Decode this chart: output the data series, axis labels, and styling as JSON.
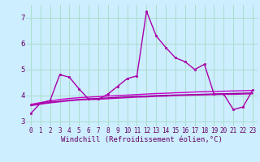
{
  "xlabel": "Windchill (Refroidissement éolien,°C)",
  "background_color": "#cceeff",
  "grid_color": "#aaddcc",
  "xlim": [
    -0.5,
    23.5
  ],
  "ylim": [
    2.8,
    7.5
  ],
  "yticks": [
    3,
    4,
    5,
    6,
    7
  ],
  "xticks": [
    0,
    1,
    2,
    3,
    4,
    5,
    6,
    7,
    8,
    9,
    10,
    11,
    12,
    13,
    14,
    15,
    16,
    17,
    18,
    19,
    20,
    21,
    22,
    23
  ],
  "series": [
    {
      "x": [
        0,
        1,
        2,
        3,
        4,
        5,
        6,
        7,
        8,
        9,
        10,
        11,
        12,
        13,
        14,
        15,
        16,
        17,
        18,
        19,
        20,
        21,
        22,
        23
      ],
      "y": [
        3.3,
        3.7,
        3.8,
        4.8,
        4.7,
        4.25,
        3.85,
        3.85,
        4.05,
        4.35,
        4.65,
        4.75,
        7.25,
        6.3,
        5.85,
        5.45,
        5.3,
        5.0,
        5.2,
        4.05,
        4.05,
        3.45,
        3.55,
        4.2
      ],
      "color": "#aa00aa",
      "lw": 1.0,
      "marker": "s",
      "ms": 2.0
    },
    {
      "x": [
        0,
        1,
        2,
        3,
        4,
        5,
        6,
        7,
        8,
        9,
        10,
        11,
        12,
        13,
        14,
        15,
        16,
        17,
        18,
        19,
        20,
        21,
        22,
        23
      ],
      "y": [
        3.65,
        3.72,
        3.78,
        3.84,
        3.88,
        3.91,
        3.93,
        3.95,
        3.97,
        3.99,
        4.01,
        4.03,
        4.05,
        4.07,
        4.08,
        4.1,
        4.11,
        4.13,
        4.14,
        4.15,
        4.16,
        4.17,
        4.18,
        4.19
      ],
      "color": "#cc00cc",
      "lw": 1.0,
      "marker": null
    },
    {
      "x": [
        0,
        1,
        2,
        3,
        4,
        5,
        6,
        7,
        8,
        9,
        10,
        11,
        12,
        13,
        14,
        15,
        16,
        17,
        18,
        19,
        20,
        21,
        22,
        23
      ],
      "y": [
        3.62,
        3.68,
        3.73,
        3.77,
        3.81,
        3.84,
        3.86,
        3.88,
        3.9,
        3.92,
        3.94,
        3.96,
        3.97,
        3.99,
        4.0,
        4.01,
        4.02,
        4.03,
        4.04,
        4.05,
        4.06,
        4.07,
        4.08,
        4.09
      ],
      "color": "#880088",
      "lw": 1.0,
      "marker": null
    },
    {
      "x": [
        0,
        1,
        2,
        3,
        4,
        5,
        6,
        7,
        8,
        9,
        10,
        11,
        12,
        13,
        14,
        15,
        16,
        17,
        18,
        19,
        20,
        21,
        22,
        23
      ],
      "y": [
        3.6,
        3.66,
        3.71,
        3.75,
        3.79,
        3.82,
        3.84,
        3.85,
        3.87,
        3.89,
        3.91,
        3.93,
        3.94,
        3.96,
        3.97,
        3.99,
        4.0,
        4.01,
        4.02,
        4.03,
        4.04,
        4.04,
        4.05,
        4.06
      ],
      "color": "#bb00bb",
      "lw": 1.0,
      "marker": null
    }
  ],
  "font_color": "#660066",
  "tick_fontsize": 5.5,
  "label_fontsize": 6.5
}
